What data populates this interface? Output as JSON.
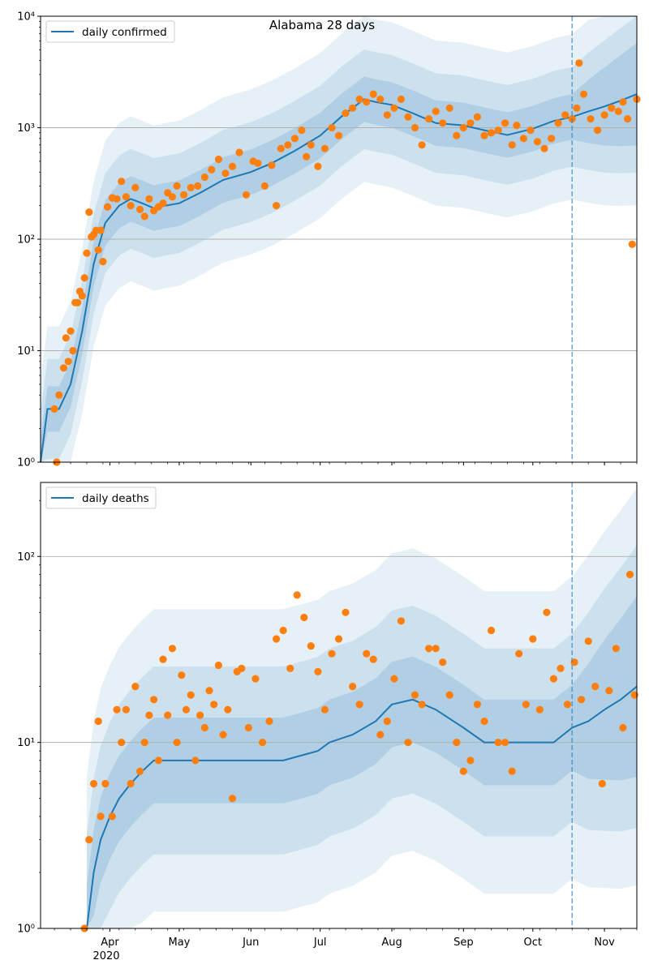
{
  "chart_data": [
    {
      "type": "line",
      "title": "Alabama 28 days",
      "yscale": "log",
      "ylim": [
        1,
        10000
      ],
      "xlim": [
        "2020-03-02",
        "2020-11-15"
      ],
      "y_tick_labels": [
        "10⁰",
        "10¹",
        "10²",
        "10³",
        "10⁴"
      ],
      "grid": "horizontal at decades",
      "legend": "top-left",
      "vline_date": "2020-10-18",
      "series": [
        {
          "name": "daily confirmed",
          "kind": "line",
          "color": "#1f77b4",
          "x": [
            "2020-03-02",
            "2020-03-05",
            "2020-03-10",
            "2020-03-15",
            "2020-03-20",
            "2020-03-25",
            "2020-03-30",
            "2020-04-05",
            "2020-04-10",
            "2020-04-15",
            "2020-04-20",
            "2020-04-25",
            "2020-05-01",
            "2020-05-10",
            "2020-05-20",
            "2020-06-01",
            "2020-06-10",
            "2020-06-20",
            "2020-07-01",
            "2020-07-10",
            "2020-07-20",
            "2020-07-25",
            "2020-08-01",
            "2020-08-10",
            "2020-08-20",
            "2020-09-01",
            "2020-09-10",
            "2020-09-20",
            "2020-10-01",
            "2020-10-10",
            "2020-10-18",
            "2020-10-25",
            "2020-11-01",
            "2020-11-08",
            "2020-11-15"
          ],
          "y": [
            1,
            3,
            3,
            5,
            15,
            60,
            140,
            200,
            230,
            210,
            190,
            200,
            210,
            260,
            340,
            400,
            480,
            620,
            850,
            1250,
            1800,
            1700,
            1600,
            1350,
            1100,
            1050,
            950,
            860,
            980,
            1150,
            1250,
            1400,
            1550,
            1750,
            2000
          ]
        },
        {
          "name": "",
          "kind": "scatter",
          "color": "#ff7f0e",
          "x": [
            "2020-03-08",
            "2020-03-09",
            "2020-03-10",
            "2020-03-12",
            "2020-03-13",
            "2020-03-14",
            "2020-03-15",
            "2020-03-16",
            "2020-03-17",
            "2020-03-18",
            "2020-03-19",
            "2020-03-20",
            "2020-03-21",
            "2020-03-22",
            "2020-03-23",
            "2020-03-24",
            "2020-03-25",
            "2020-03-26",
            "2020-03-27",
            "2020-03-28",
            "2020-03-29",
            "2020-03-31",
            "2020-04-02",
            "2020-04-04",
            "2020-04-06",
            "2020-04-08",
            "2020-04-10",
            "2020-04-12",
            "2020-04-14",
            "2020-04-16",
            "2020-04-18",
            "2020-04-20",
            "2020-04-22",
            "2020-04-24",
            "2020-04-26",
            "2020-04-28",
            "2020-04-30",
            "2020-05-03",
            "2020-05-06",
            "2020-05-09",
            "2020-05-12",
            "2020-05-15",
            "2020-05-18",
            "2020-05-21",
            "2020-05-24",
            "2020-05-27",
            "2020-05-30",
            "2020-06-02",
            "2020-06-04",
            "2020-06-07",
            "2020-06-10",
            "2020-06-12",
            "2020-06-14",
            "2020-06-17",
            "2020-06-20",
            "2020-06-23",
            "2020-06-25",
            "2020-06-27",
            "2020-06-30",
            "2020-07-03",
            "2020-07-06",
            "2020-07-09",
            "2020-07-12",
            "2020-07-15",
            "2020-07-18",
            "2020-07-21",
            "2020-07-24",
            "2020-07-27",
            "2020-07-30",
            "2020-08-02",
            "2020-08-05",
            "2020-08-08",
            "2020-08-11",
            "2020-08-14",
            "2020-08-17",
            "2020-08-20",
            "2020-08-23",
            "2020-08-26",
            "2020-08-29",
            "2020-09-01",
            "2020-09-04",
            "2020-09-07",
            "2020-09-10",
            "2020-09-13",
            "2020-09-16",
            "2020-09-19",
            "2020-09-22",
            "2020-09-24",
            "2020-09-27",
            "2020-09-30",
            "2020-10-03",
            "2020-10-06",
            "2020-10-09",
            "2020-10-12",
            "2020-10-15",
            "2020-10-18",
            "2020-10-20",
            "2020-10-21",
            "2020-10-23",
            "2020-10-26",
            "2020-10-29",
            "2020-11-01",
            "2020-11-04",
            "2020-11-07",
            "2020-11-09",
            "2020-11-11",
            "2020-11-13",
            "2020-11-15"
          ],
          "y": [
            3,
            1,
            4,
            7,
            13,
            8,
            15,
            10,
            27,
            27,
            34,
            31,
            45,
            75,
            175,
            105,
            110,
            120,
            80,
            120,
            63,
            195,
            235,
            230,
            330,
            240,
            200,
            290,
            185,
            160,
            230,
            180,
            195,
            210,
            260,
            240,
            300,
            250,
            290,
            300,
            360,
            420,
            520,
            390,
            450,
            600,
            250,
            500,
            480,
            300,
            460,
            200,
            650,
            700,
            800,
            950,
            550,
            700,
            450,
            650,
            1000,
            850,
            1350,
            1500,
            1800,
            1700,
            2000,
            1800,
            1300,
            1500,
            1800,
            1250,
            1000,
            700,
            1200,
            1400,
            1100,
            1500,
            850,
            1000,
            1100,
            1250,
            850,
            900,
            950,
            1100,
            700,
            1050,
            800,
            950,
            750,
            650,
            800,
            1100,
            1300,
            1200,
            1500,
            3800,
            2000,
            1200,
            950,
            1300,
            1500,
            1400,
            1700,
            1200,
            90,
            1800
          ]
        }
      ]
    },
    {
      "type": "line",
      "title": "",
      "yscale": "log",
      "ylim": [
        1,
        250
      ],
      "xlim": [
        "2020-03-02",
        "2020-11-15"
      ],
      "y_tick_labels": [
        "10⁰",
        "10¹",
        "10²"
      ],
      "x_tick_labels": [
        "Apr",
        "May",
        "Jun",
        "Jul",
        "Aug",
        "Sep",
        "Oct",
        "Nov"
      ],
      "x_year_label": "2020",
      "grid": "horizontal at decades",
      "legend": "top-left",
      "vline_date": "2020-10-18",
      "series": [
        {
          "name": "daily deaths",
          "kind": "line",
          "color": "#1f77b4",
          "x": [
            "2020-03-22",
            "2020-03-25",
            "2020-03-28",
            "2020-04-01",
            "2020-04-05",
            "2020-04-10",
            "2020-04-15",
            "2020-04-20",
            "2020-05-01",
            "2020-05-15",
            "2020-06-01",
            "2020-06-15",
            "2020-06-30",
            "2020-07-05",
            "2020-07-15",
            "2020-07-25",
            "2020-08-01",
            "2020-08-10",
            "2020-08-20",
            "2020-09-01",
            "2020-09-10",
            "2020-09-20",
            "2020-10-01",
            "2020-10-10",
            "2020-10-18",
            "2020-10-25",
            "2020-11-01",
            "2020-11-08",
            "2020-11-15"
          ],
          "y": [
            1,
            2,
            3,
            4,
            5,
            6,
            7,
            8,
            8,
            8,
            8,
            8,
            9,
            10,
            11,
            13,
            16,
            17,
            15,
            12,
            10,
            10,
            10,
            10,
            12,
            13,
            15,
            17,
            20
          ]
        },
        {
          "name": "",
          "kind": "scatter",
          "color": "#ff7f0e",
          "x": [
            "2020-03-21",
            "2020-03-23",
            "2020-03-25",
            "2020-03-27",
            "2020-03-28",
            "2020-03-30",
            "2020-04-02",
            "2020-04-04",
            "2020-04-06",
            "2020-04-08",
            "2020-04-10",
            "2020-04-12",
            "2020-04-14",
            "2020-04-16",
            "2020-04-18",
            "2020-04-20",
            "2020-04-22",
            "2020-04-24",
            "2020-04-26",
            "2020-04-28",
            "2020-04-30",
            "2020-05-02",
            "2020-05-04",
            "2020-05-06",
            "2020-05-08",
            "2020-05-10",
            "2020-05-12",
            "2020-05-14",
            "2020-05-16",
            "2020-05-18",
            "2020-05-20",
            "2020-05-22",
            "2020-05-24",
            "2020-05-26",
            "2020-05-28",
            "2020-05-31",
            "2020-06-03",
            "2020-06-06",
            "2020-06-09",
            "2020-06-12",
            "2020-06-15",
            "2020-06-18",
            "2020-06-21",
            "2020-06-24",
            "2020-06-27",
            "2020-06-30",
            "2020-07-03",
            "2020-07-06",
            "2020-07-09",
            "2020-07-12",
            "2020-07-15",
            "2020-07-18",
            "2020-07-21",
            "2020-07-24",
            "2020-07-27",
            "2020-07-30",
            "2020-08-02",
            "2020-08-05",
            "2020-08-08",
            "2020-08-11",
            "2020-08-14",
            "2020-08-17",
            "2020-08-20",
            "2020-08-23",
            "2020-08-26",
            "2020-08-29",
            "2020-09-01",
            "2020-09-04",
            "2020-09-07",
            "2020-09-10",
            "2020-09-13",
            "2020-09-16",
            "2020-09-19",
            "2020-09-22",
            "2020-09-25",
            "2020-09-28",
            "2020-10-01",
            "2020-10-04",
            "2020-10-07",
            "2020-10-10",
            "2020-10-13",
            "2020-10-16",
            "2020-10-19",
            "2020-10-22",
            "2020-10-25",
            "2020-10-28",
            "2020-10-31",
            "2020-11-03",
            "2020-11-06",
            "2020-11-09",
            "2020-11-12",
            "2020-11-14"
          ],
          "y": [
            1,
            3,
            6,
            13,
            4,
            6,
            4,
            15,
            10,
            15,
            6,
            20,
            7,
            10,
            14,
            17,
            8,
            28,
            14,
            32,
            10,
            23,
            15,
            18,
            8,
            14,
            12,
            19,
            16,
            26,
            11,
            15,
            5,
            24,
            25,
            12,
            22,
            10,
            13,
            36,
            40,
            25,
            62,
            47,
            33,
            24,
            15,
            30,
            36,
            50,
            20,
            16,
            30,
            28,
            11,
            13,
            22,
            45,
            10,
            18,
            16,
            32,
            32,
            27,
            18,
            10,
            7,
            8,
            16,
            13,
            40,
            10,
            10,
            7,
            30,
            16,
            36,
            15,
            50,
            22,
            25,
            16,
            27,
            17,
            35,
            20,
            6,
            19,
            32,
            12,
            80,
            18
          ]
        }
      ]
    }
  ]
}
